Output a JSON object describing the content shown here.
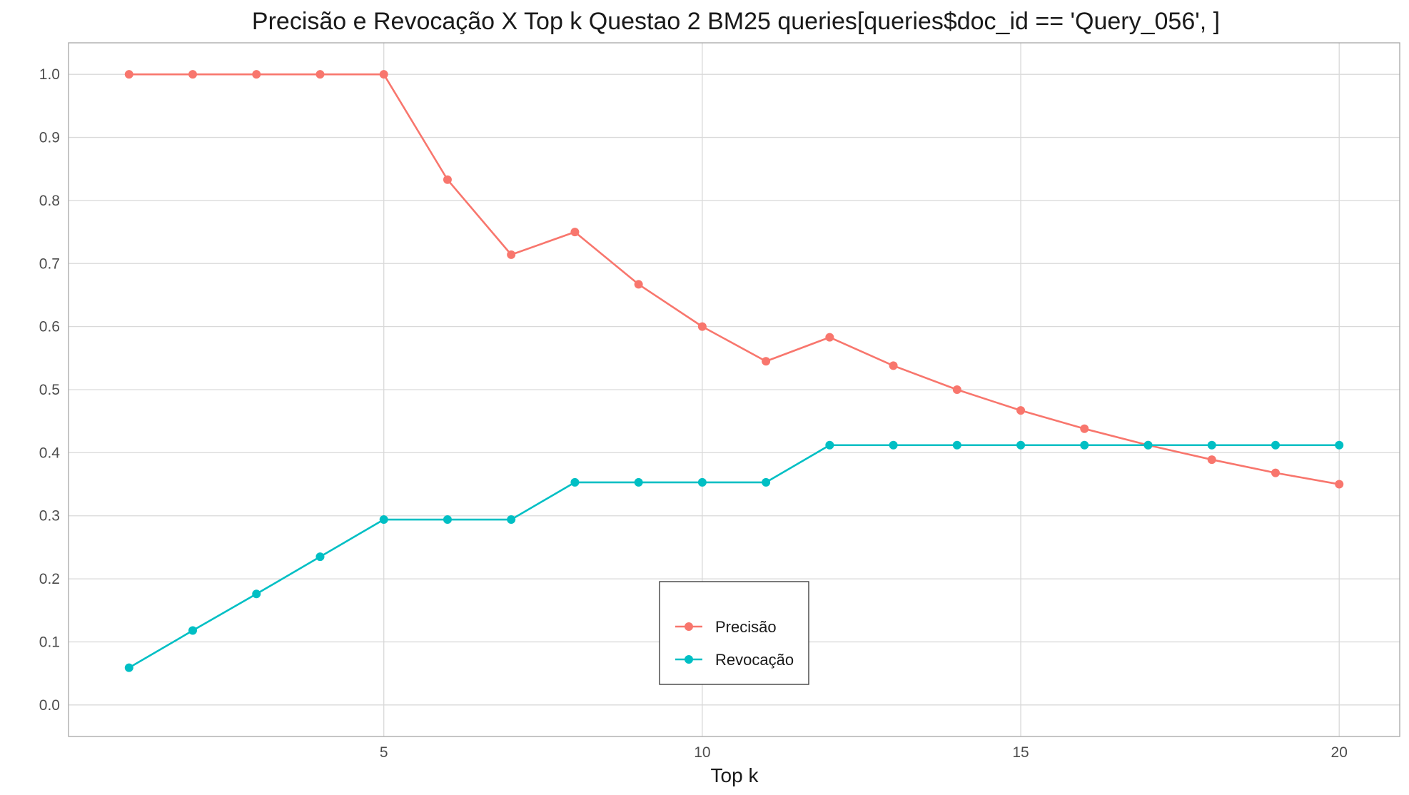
{
  "chart_data": {
    "type": "line",
    "title": "Precisão e Revocação X Top k Questao 2 BM25 queries[queries$doc_id == 'Query_056', ]",
    "xlabel": "Top k",
    "ylabel": "",
    "x": [
      1,
      2,
      3,
      4,
      5,
      6,
      7,
      8,
      9,
      10,
      11,
      12,
      13,
      14,
      15,
      16,
      17,
      18,
      19,
      20
    ],
    "xlim": [
      0.05,
      20.95
    ],
    "ylim": [
      -0.05,
      1.05
    ],
    "xticks": [
      5,
      10,
      15,
      20
    ],
    "xtick_labels": [
      "5",
      "10",
      "15",
      "20"
    ],
    "yticks": [
      0.0,
      0.1,
      0.2,
      0.3,
      0.4,
      0.5,
      0.6,
      0.7,
      0.8,
      0.9,
      1.0
    ],
    "ytick_labels": [
      "0.0",
      "0.1",
      "0.2",
      "0.3",
      "0.4",
      "0.5",
      "0.6",
      "0.7",
      "0.8",
      "0.9",
      "1.0"
    ],
    "grid": true,
    "legend_position": "bottom-center",
    "series": [
      {
        "name": "Precisão",
        "color": "#F8766D",
        "values": [
          1.0,
          1.0,
          1.0,
          1.0,
          1.0,
          0.833,
          0.714,
          0.75,
          0.667,
          0.6,
          0.545,
          0.583,
          0.538,
          0.5,
          0.467,
          0.438,
          0.412,
          0.389,
          0.368,
          0.35
        ]
      },
      {
        "name": "Revocação",
        "color": "#00BFC4",
        "values": [
          0.059,
          0.118,
          0.176,
          0.235,
          0.294,
          0.294,
          0.294,
          0.353,
          0.353,
          0.353,
          0.353,
          0.412,
          0.412,
          0.412,
          0.412,
          0.412,
          0.412,
          0.412,
          0.412,
          0.412
        ]
      }
    ]
  }
}
